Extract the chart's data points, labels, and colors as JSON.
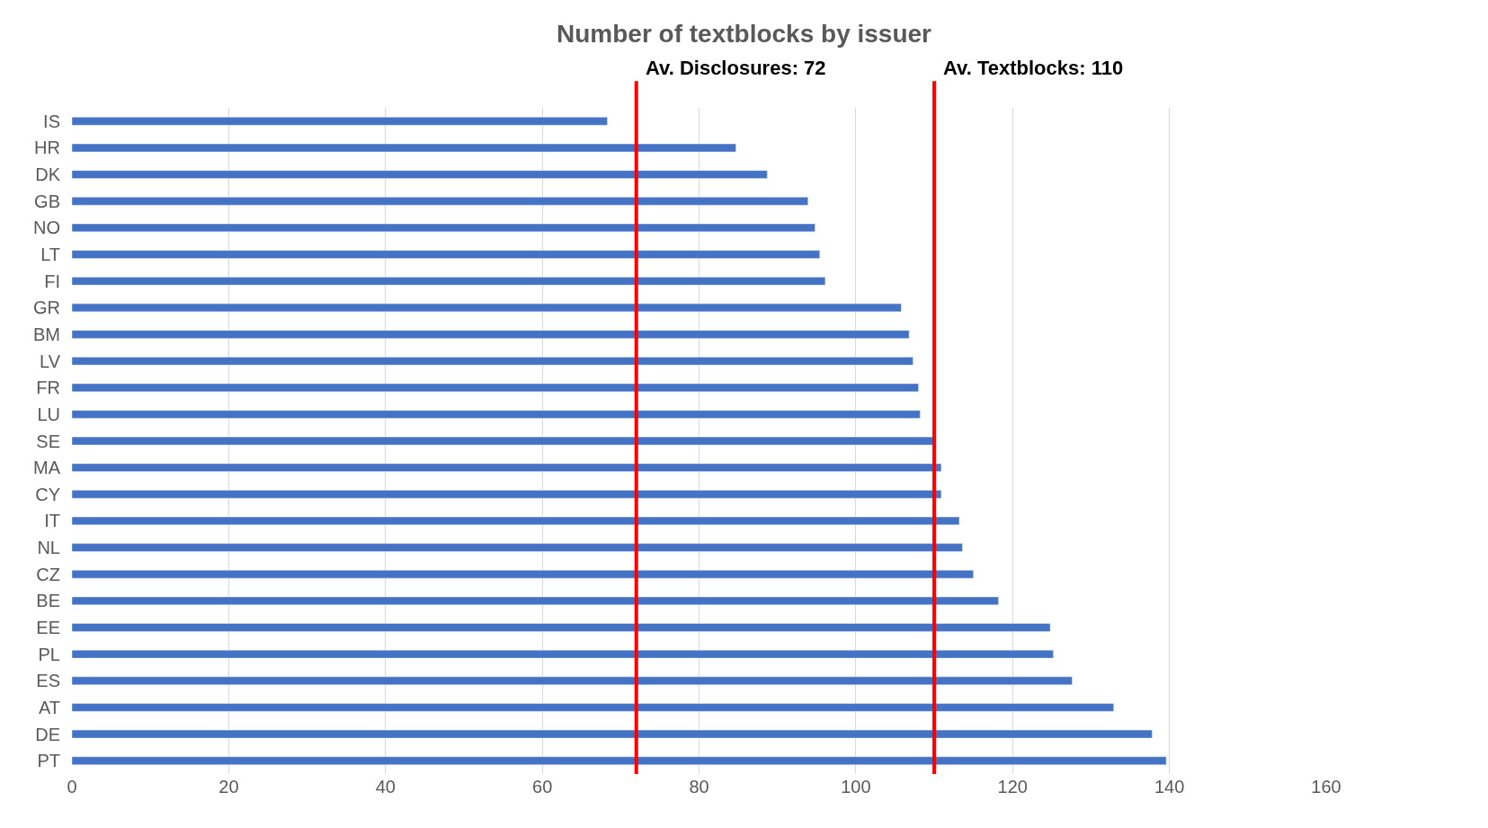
{
  "chart_data": {
    "type": "bar",
    "orientation": "horizontal",
    "title": "Number of textblocks by issuer",
    "categories": [
      "IS",
      "HR",
      "DK",
      "GB",
      "NO",
      "LT",
      "FI",
      "GR",
      "BM",
      "LV",
      "FR",
      "LU",
      "SE",
      "MA",
      "CY",
      "IT",
      "NL",
      "CZ",
      "BE",
      "EE",
      "PL",
      "ES",
      "AT",
      "DE",
      "PT"
    ],
    "values": [
      68.3,
      84.7,
      88.7,
      93.9,
      94.8,
      95.4,
      96.1,
      105.8,
      106.8,
      107.3,
      108.0,
      108.2,
      110.2,
      110.9,
      110.9,
      113.2,
      113.6,
      115.0,
      118.2,
      124.8,
      125.2,
      127.6,
      132.9,
      137.8,
      139.6
    ],
    "color": "#4472c4",
    "xlim": [
      0,
      160
    ],
    "xticks": [
      0,
      20,
      40,
      60,
      80,
      100,
      120,
      140,
      160
    ],
    "grid": "x",
    "ref_lines": [
      {
        "axis": "x",
        "value": 72,
        "label": "Av. Disclosures: 72",
        "color": "#ff0000"
      },
      {
        "axis": "x",
        "value": 110,
        "label": "Av. Textblocks: 110",
        "color": "#ff0000"
      }
    ]
  }
}
